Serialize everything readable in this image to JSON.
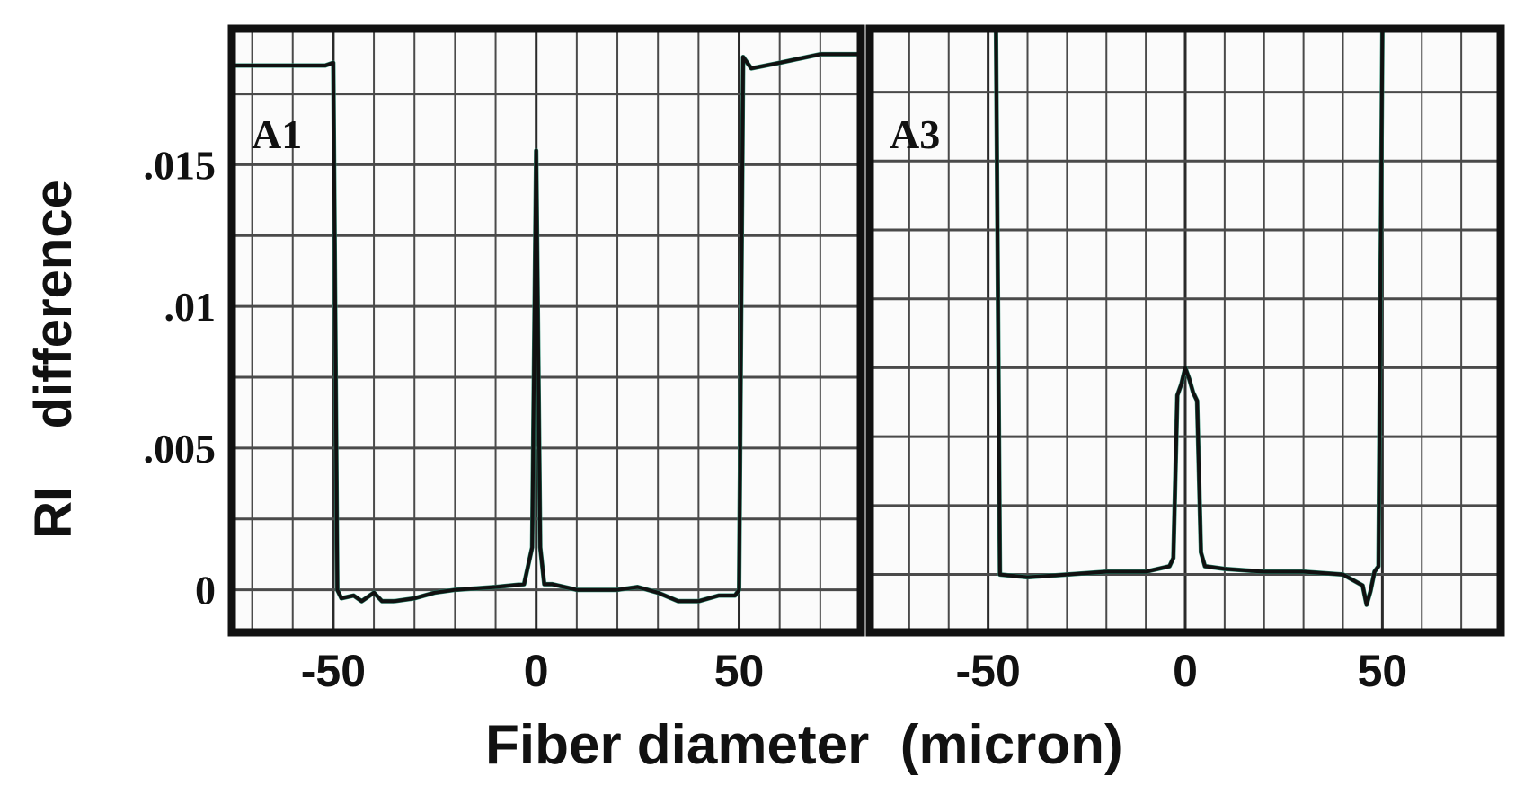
{
  "chart_data": {
    "type": "line",
    "xlabel": "Fiber diameter  (micron)",
    "ylabel": "RI    difference",
    "panels": [
      {
        "label": "A1",
        "xlim": [
          -75,
          80
        ],
        "ylim": [
          -0.0015,
          0.0198
        ],
        "xticks": [
          -50,
          0,
          50
        ],
        "yticks": [
          0,
          0.005,
          0.01,
          0.015
        ],
        "ytick_labels": [
          "0",
          ".005",
          ".01",
          ".015"
        ],
        "series": [
          {
            "x": [
              -75,
              -52,
              -50,
              -49,
              -48,
              -45,
              -43,
              -40,
              -38,
              -35,
              -30,
              -25,
              -20,
              -10,
              -3,
              -1,
              0,
              1,
              2,
              4,
              10,
              20,
              25,
              30,
              35,
              40,
              45,
              49,
              50,
              51,
              53,
              60,
              70,
              80
            ],
            "y": [
              0.0185,
              0.0185,
              0.0186,
              0.0,
              -0.0003,
              -0.0002,
              -0.0004,
              -0.0001,
              -0.0004,
              -0.0004,
              -0.0003,
              -0.0001,
              0.0,
              0.0001,
              0.0002,
              0.0015,
              0.0155,
              0.0015,
              0.0002,
              0.0002,
              0.0,
              0.0,
              0.0001,
              -0.0001,
              -0.0004,
              -0.0004,
              -0.0002,
              -0.0002,
              0.0,
              0.0188,
              0.0184,
              0.0186,
              0.0189,
              0.0189
            ]
          }
        ]
      },
      {
        "label": "A3",
        "xlim": [
          -80,
          80
        ],
        "ylim": [
          -0.0021,
          0.0198
        ],
        "xticks": [
          -50,
          0,
          50
        ],
        "series": [
          {
            "x": [
              -52,
              -48,
              -47,
              -40,
              -30,
              -20,
              -10,
              -4,
              -3,
              -2,
              -1,
              0,
              1,
              2,
              3,
              4,
              5,
              10,
              20,
              30,
              40,
              45,
              46,
              47,
              48,
              49,
              50
            ],
            "y": [
              0.0198,
              0.0198,
              0.0,
              -0.0001,
              0.0,
              0.0001,
              0.0001,
              0.0003,
              0.0006,
              0.0065,
              0.0069,
              0.0075,
              0.0071,
              0.0066,
              0.0063,
              0.0008,
              0.0003,
              0.0002,
              0.0001,
              0.0001,
              0.0,
              -0.0004,
              -0.0011,
              -0.0006,
              0.0001,
              0.0003,
              0.0198
            ]
          }
        ]
      }
    ]
  }
}
